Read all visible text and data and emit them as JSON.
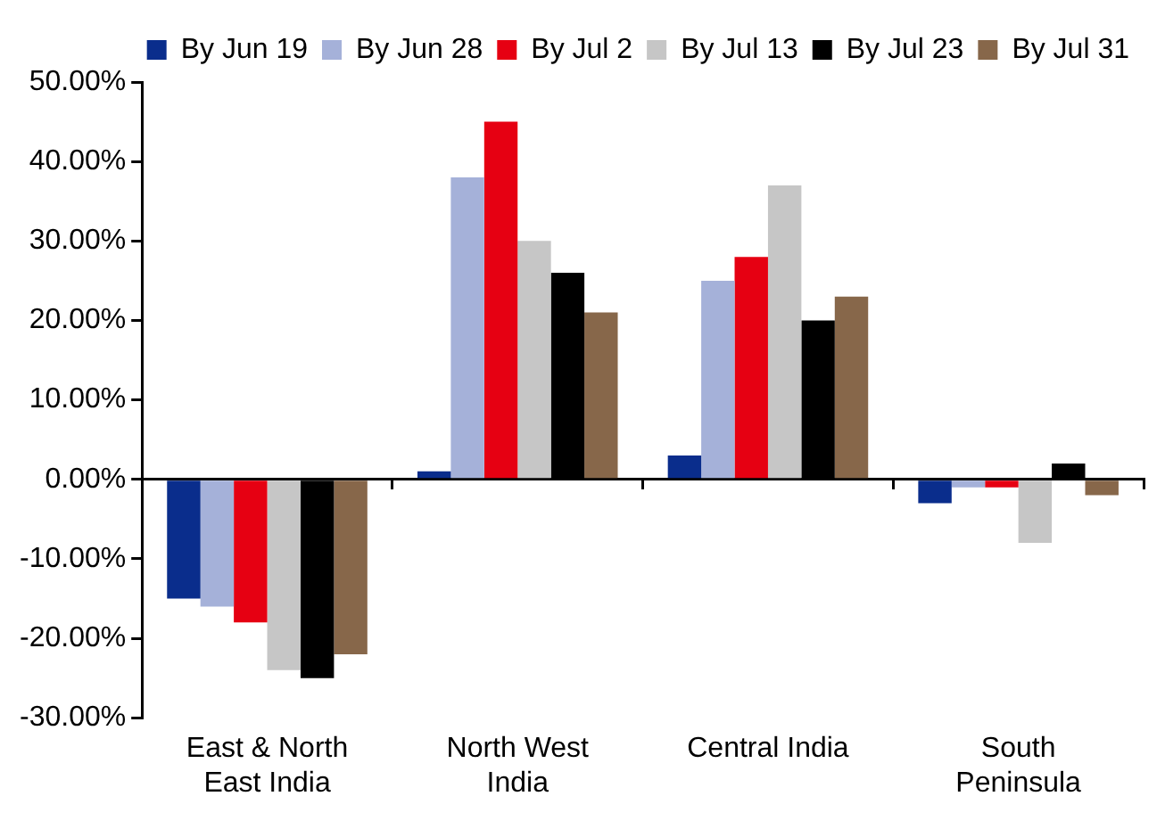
{
  "chart_data": {
    "type": "bar",
    "categories": [
      "East & North East India",
      "North West India",
      "Central India",
      "South Peninsula"
    ],
    "series": [
      {
        "name": "By Jun 19",
        "color": "#0a2d8c",
        "values": [
          -15,
          1,
          3,
          -3
        ]
      },
      {
        "name": "By Jun 28",
        "color": "#a5b1d9",
        "values": [
          -16,
          38,
          25,
          -1
        ]
      },
      {
        "name": "By Jul 2",
        "color": "#e60012",
        "values": [
          -18,
          45,
          28,
          -1
        ]
      },
      {
        "name": "By Jul 13",
        "color": "#c6c6c6",
        "values": [
          -24,
          30,
          37,
          -8
        ]
      },
      {
        "name": "By Jul 23",
        "color": "#000000",
        "values": [
          -25,
          26,
          20,
          2
        ]
      },
      {
        "name": "By Jul 31",
        "color": "#87674a",
        "values": [
          -22,
          21,
          23,
          -2
        ]
      }
    ],
    "ylim": [
      -30,
      50
    ],
    "yticks": [
      {
        "value": -30,
        "label": "-30.00%"
      },
      {
        "value": -20,
        "label": "-20.00%"
      },
      {
        "value": -10,
        "label": "-10.00%"
      },
      {
        "value": 0,
        "label": "0.00%"
      },
      {
        "value": 10,
        "label": "10.00%"
      },
      {
        "value": 20,
        "label": "20.00%"
      },
      {
        "value": 30,
        "label": "30.00%"
      },
      {
        "value": 40,
        "label": "40.00%"
      },
      {
        "value": 50,
        "label": "50.00%"
      }
    ],
    "legend": "top"
  }
}
